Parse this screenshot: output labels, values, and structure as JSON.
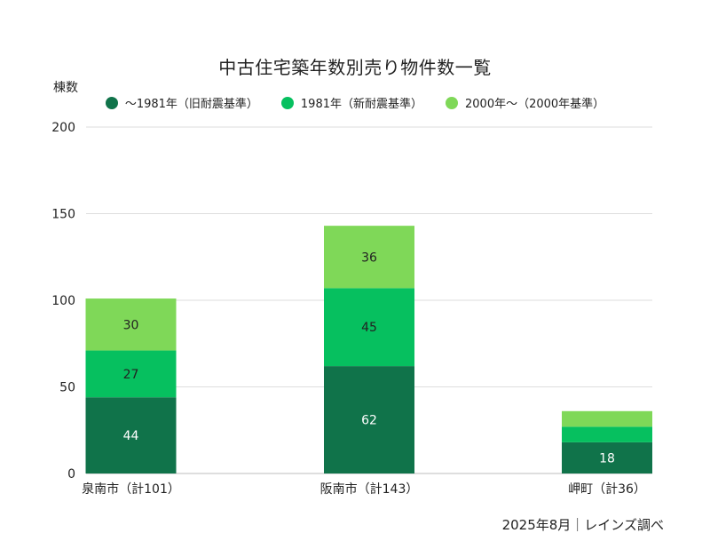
{
  "chart_data": {
    "type": "bar",
    "stacked": true,
    "title": "中古住宅築年数別売り物件数一覧",
    "ylabel": "棟数",
    "ylim": [
      0,
      200
    ],
    "yticks": [
      0,
      50,
      100,
      150,
      200
    ],
    "grid": true,
    "legend_position": "top",
    "categories": [
      "泉南市（計101）",
      "阪南市（計143）",
      "岬町（計36）"
    ],
    "series": [
      {
        "name": "〜1981年（旧耐震基準）",
        "color": "#10734a",
        "values": [
          44,
          62,
          18
        ],
        "labels": [
          "44",
          "62",
          "18"
        ]
      },
      {
        "name": "1981年（新耐震基準）",
        "color": "#06c05f",
        "values": [
          27,
          45,
          9
        ],
        "labels": [
          "27",
          "45",
          ""
        ]
      },
      {
        "name": "2000年〜（2000年基準）",
        "color": "#7fd858",
        "values": [
          30,
          36,
          9
        ],
        "labels": [
          "30",
          "36",
          ""
        ]
      }
    ]
  },
  "footer": {
    "source": "2025年8月｜レインズ調べ"
  }
}
